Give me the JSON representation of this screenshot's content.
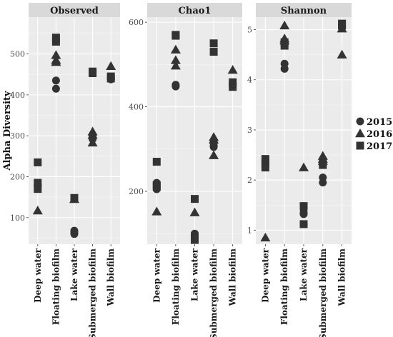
{
  "chart_data": {
    "type": "scatter",
    "ylabel": "Alpha Diversity",
    "categories": [
      "Deep water",
      "Floating biofilm",
      "Lake water",
      "Submerged biofilm",
      "Wall biofilm"
    ],
    "legend": {
      "placement": "right",
      "entries": [
        {
          "name": "2015",
          "shape": "circle"
        },
        {
          "name": "2016",
          "shape": "triangle"
        },
        {
          "name": "2017",
          "shape": "square"
        }
      ]
    },
    "colors": {
      "panel_bg": "#ebebeb",
      "grid": "#ffffff",
      "strip_bg": "#d9d9d9",
      "point": "#333333"
    },
    "grid": true,
    "panels": [
      {
        "title": "Observed",
        "ylim": [
          35,
          590
        ],
        "yticks": [
          100,
          200,
          300,
          400,
          500
        ],
        "points": [
          {
            "cat": "Deep water",
            "year": "2015",
            "values": [
              180,
              178
            ]
          },
          {
            "cat": "Deep water",
            "year": "2016",
            "values": [
              117
            ]
          },
          {
            "cat": "Deep water",
            "year": "2017",
            "values": [
              235,
              185,
              170
            ]
          },
          {
            "cat": "Floating biofilm",
            "year": "2015",
            "values": [
              435,
              415
            ]
          },
          {
            "cat": "Floating biofilm",
            "year": "2016",
            "values": [
              497,
              485,
              480
            ]
          },
          {
            "cat": "Floating biofilm",
            "year": "2017",
            "values": [
              540,
              530
            ]
          },
          {
            "cat": "Lake water",
            "year": "2015",
            "values": [
              68,
              64,
              60
            ]
          },
          {
            "cat": "Lake water",
            "year": "2016",
            "values": [
              145
            ]
          },
          {
            "cat": "Lake water",
            "year": "2017",
            "values": [
              148
            ]
          },
          {
            "cat": "Submerged biofilm",
            "year": "2015",
            "values": [
              300,
              295,
              292
            ]
          },
          {
            "cat": "Submerged biofilm",
            "year": "2016",
            "values": [
              310,
              302,
              283
            ]
          },
          {
            "cat": "Submerged biofilm",
            "year": "2017",
            "values": [
              457,
              453
            ]
          },
          {
            "cat": "Wall biofilm",
            "year": "2015",
            "values": [
              440,
              438
            ]
          },
          {
            "cat": "Wall biofilm",
            "year": "2016",
            "values": [
              470
            ]
          },
          {
            "cat": "Wall biofilm",
            "year": "2017",
            "values": [
              445,
              440
            ]
          }
        ]
      },
      {
        "title": "Chao1",
        "ylim": [
          75,
          612
        ],
        "yticks": [
          200,
          400,
          600
        ],
        "points": [
          {
            "cat": "Deep water",
            "year": "2015",
            "values": [
              220,
              205
            ]
          },
          {
            "cat": "Deep water",
            "year": "2016",
            "values": [
              152
            ]
          },
          {
            "cat": "Deep water",
            "year": "2017",
            "values": [
              270,
              215,
              210
            ]
          },
          {
            "cat": "Floating biofilm",
            "year": "2015",
            "values": [
              452,
              448
            ]
          },
          {
            "cat": "Floating biofilm",
            "year": "2016",
            "values": [
              535,
              510,
              497
            ]
          },
          {
            "cat": "Floating biofilm",
            "year": "2017",
            "values": [
              570,
              568
            ]
          },
          {
            "cat": "Lake water",
            "year": "2015",
            "values": [
              100,
              95,
              88
            ]
          },
          {
            "cat": "Lake water",
            "year": "2016",
            "values": [
              150
            ]
          },
          {
            "cat": "Lake water",
            "year": "2017",
            "values": [
              182,
              90,
              85
            ]
          },
          {
            "cat": "Submerged biofilm",
            "year": "2015",
            "values": [
              315,
              308,
              305
            ]
          },
          {
            "cat": "Submerged biofilm",
            "year": "2016",
            "values": [
              328,
              322,
              285
            ]
          },
          {
            "cat": "Submerged biofilm",
            "year": "2017",
            "values": [
              550,
              530
            ]
          },
          {
            "cat": "Wall biofilm",
            "year": "2015",
            "values": [
              455,
              450
            ]
          },
          {
            "cat": "Wall biofilm",
            "year": "2016",
            "values": [
              487
            ]
          },
          {
            "cat": "Wall biofilm",
            "year": "2017",
            "values": [
              458,
              447
            ]
          }
        ]
      },
      {
        "title": "Shannon",
        "ylim": [
          0.72,
          5.25
        ],
        "yticks": [
          1,
          2,
          3,
          4,
          5
        ],
        "points": [
          {
            "cat": "Deep water",
            "year": "2015",
            "values": [
              2.35,
              2.3
            ]
          },
          {
            "cat": "Deep water",
            "year": "2016",
            "values": [
              0.85
            ]
          },
          {
            "cat": "Deep water",
            "year": "2017",
            "values": [
              2.42,
              2.35,
              2.25
            ]
          },
          {
            "cat": "Floating biofilm",
            "year": "2015",
            "values": [
              4.32,
              4.22
            ]
          },
          {
            "cat": "Floating biofilm",
            "year": "2016",
            "values": [
              5.08,
              4.82,
              4.78
            ]
          },
          {
            "cat": "Floating biofilm",
            "year": "2017",
            "values": [
              4.75,
              4.68
            ]
          },
          {
            "cat": "Lake water",
            "year": "2015",
            "values": [
              1.42,
              1.35,
              1.32
            ]
          },
          {
            "cat": "Lake water",
            "year": "2016",
            "values": [
              2.25
            ]
          },
          {
            "cat": "Lake water",
            "year": "2017",
            "values": [
              1.48,
              1.12
            ]
          },
          {
            "cat": "Submerged biofilm",
            "year": "2015",
            "values": [
              2.05,
              1.95
            ]
          },
          {
            "cat": "Submerged biofilm",
            "year": "2016",
            "values": [
              2.48,
              2.42,
              2.38
            ]
          },
          {
            "cat": "Submerged biofilm",
            "year": "2017",
            "values": [
              2.35,
              2.3
            ]
          },
          {
            "cat": "Wall biofilm",
            "year": "2015",
            "values": [
              5.05
            ]
          },
          {
            "cat": "Wall biofilm",
            "year": "2016",
            "values": [
              5.02,
              4.5
            ]
          },
          {
            "cat": "Wall biofilm",
            "year": "2017",
            "values": [
              5.12,
              5.08
            ]
          }
        ]
      }
    ]
  }
}
